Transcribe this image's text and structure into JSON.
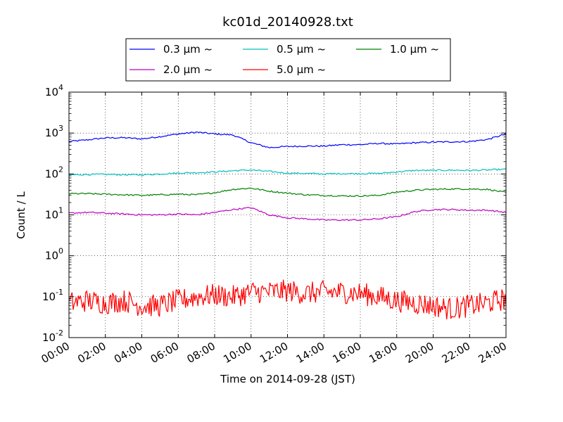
{
  "chart_data": {
    "type": "line",
    "title": "kc01d_20140928.txt",
    "xlabel": "Time on 2014-09-28 (JST)",
    "ylabel": "Count / L",
    "y_scale": "log",
    "ylim": [
      0.01,
      10000
    ],
    "xlim": [
      "00:00",
      "24:00"
    ],
    "grid": true,
    "legend_position": "top-center",
    "x_tick_labels": [
      "00:00",
      "02:00",
      "04:00",
      "06:00",
      "08:00",
      "10:00",
      "12:00",
      "14:00",
      "16:00",
      "18:00",
      "20:00",
      "22:00",
      "24:00"
    ],
    "y_tick_labels": [
      {
        "base": "10",
        "exp": "-2"
      },
      {
        "base": "10",
        "exp": "-1"
      },
      {
        "base": "10",
        "exp": "0"
      },
      {
        "base": "10",
        "exp": "1"
      },
      {
        "base": "10",
        "exp": "2"
      },
      {
        "base": "10",
        "exp": "3"
      },
      {
        "base": "10",
        "exp": "4"
      }
    ],
    "y_ticks": [
      0.01,
      0.1,
      1,
      10,
      100,
      1000,
      10000
    ],
    "x": [
      "00:00",
      "01:00",
      "02:00",
      "03:00",
      "04:00",
      "05:00",
      "06:00",
      "07:00",
      "08:00",
      "09:00",
      "10:00",
      "11:00",
      "12:00",
      "13:00",
      "14:00",
      "15:00",
      "16:00",
      "17:00",
      "18:00",
      "19:00",
      "20:00",
      "21:00",
      "22:00",
      "23:00",
      "24:00"
    ],
    "series": [
      {
        "name": "0.3 μm ~",
        "color": "#0000ff",
        "values": [
          620,
          680,
          760,
          770,
          720,
          820,
          950,
          1050,
          950,
          900,
          580,
          440,
          470,
          480,
          480,
          520,
          520,
          560,
          540,
          580,
          600,
          610,
          620,
          700,
          950
        ]
      },
      {
        "name": "0.5 μm ~",
        "color": "#00bfbf",
        "values": [
          95,
          97,
          98,
          96,
          95,
          100,
          105,
          108,
          112,
          120,
          125,
          115,
          105,
          103,
          100,
          102,
          102,
          103,
          112,
          122,
          122,
          124,
          122,
          125,
          130
        ]
      },
      {
        "name": "1.0 μm ~",
        "color": "#008000",
        "values": [
          33,
          33,
          32,
          31,
          30,
          31,
          32,
          31,
          35,
          42,
          45,
          38,
          34,
          31,
          30,
          29,
          29,
          30,
          36,
          40,
          42,
          43,
          43,
          42,
          35
        ]
      },
      {
        "name": "2.0 μm ~",
        "color": "#bf00bf",
        "values": [
          11,
          11.5,
          11,
          10.5,
          10,
          10,
          10.5,
          10,
          11.5,
          13.5,
          15,
          10,
          8.5,
          8,
          7.5,
          7.5,
          7.5,
          8,
          9,
          12,
          13.5,
          13.5,
          13,
          13,
          11.5
        ]
      },
      {
        "name": "5.0 μm ~",
        "color": "#ff0000",
        "values": [
          0.07,
          0.08,
          0.07,
          0.08,
          0.06,
          0.06,
          0.08,
          0.1,
          0.11,
          0.1,
          0.13,
          0.13,
          0.14,
          0.12,
          0.13,
          0.13,
          0.12,
          0.1,
          0.08,
          0.07,
          0.06,
          0.05,
          0.06,
          0.07,
          0.09
        ]
      }
    ]
  }
}
